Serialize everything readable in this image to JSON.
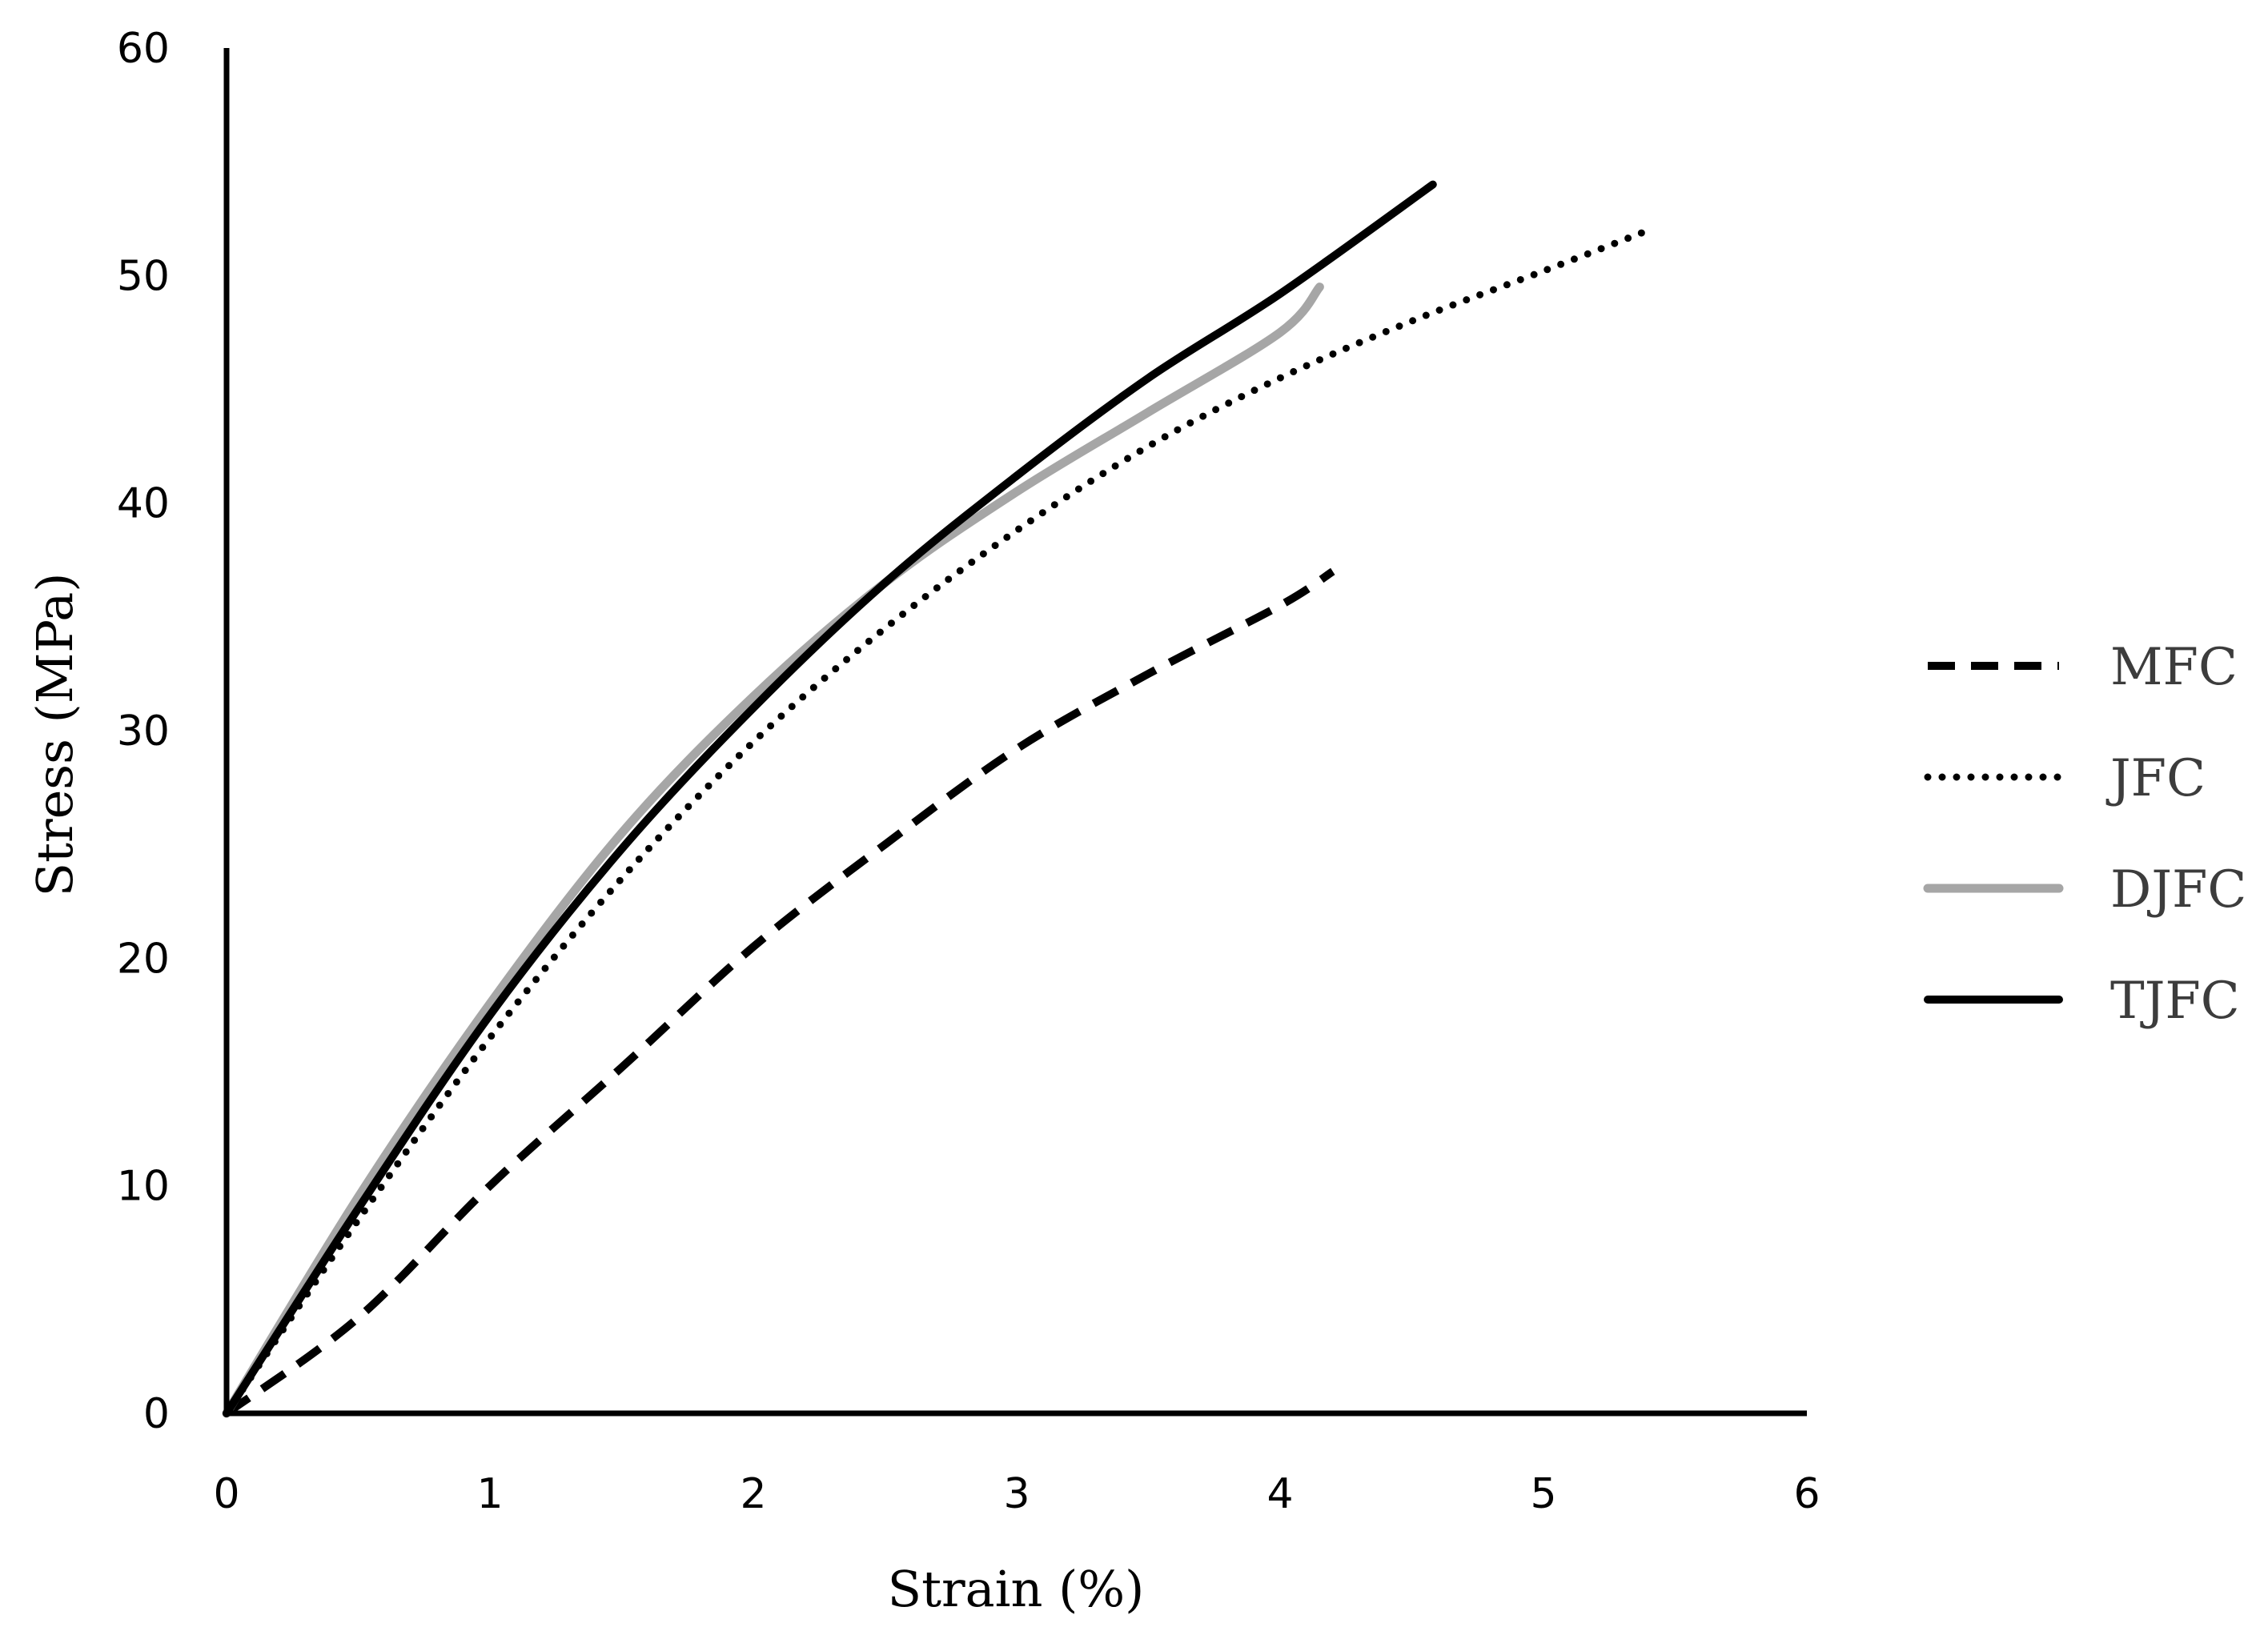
{
  "chart_data": {
    "type": "line",
    "xlabel": "Strain (%)",
    "ylabel": "Stress (MPa)",
    "xlim": [
      0,
      6
    ],
    "ylim": [
      0,
      60
    ],
    "x_ticks": [
      0,
      1,
      2,
      3,
      4,
      5,
      6
    ],
    "y_ticks": [
      0,
      10,
      20,
      30,
      40,
      50,
      60
    ],
    "grid": false,
    "legend_position": "right",
    "series": [
      {
        "name": "MFC",
        "style": "dashed",
        "color": "#000000",
        "points": [
          [
            0,
            0
          ],
          [
            0.5,
            4.2
          ],
          [
            1,
            10.0
          ],
          [
            1.5,
            15.2
          ],
          [
            2,
            20.5
          ],
          [
            2.5,
            25.0
          ],
          [
            3,
            29.2
          ],
          [
            3.5,
            32.5
          ],
          [
            4,
            35.5
          ],
          [
            4.2,
            37.0
          ]
        ]
      },
      {
        "name": "JFC",
        "style": "dotted",
        "color": "#000000",
        "points": [
          [
            0,
            0
          ],
          [
            0.5,
            8.5
          ],
          [
            1,
            16.5
          ],
          [
            1.5,
            23.5
          ],
          [
            2,
            29.5
          ],
          [
            2.5,
            34.5
          ],
          [
            3,
            38.8
          ],
          [
            3.5,
            42.5
          ],
          [
            4,
            45.5
          ],
          [
            4.5,
            48.0
          ],
          [
            5,
            50.2
          ],
          [
            5.4,
            52.0
          ]
        ]
      },
      {
        "name": "DJFC",
        "style": "solid",
        "color": "#a6a6a6",
        "points": [
          [
            0,
            0
          ],
          [
            0.5,
            9.5
          ],
          [
            1,
            18.0
          ],
          [
            1.5,
            25.5
          ],
          [
            2,
            31.5
          ],
          [
            2.5,
            36.5
          ],
          [
            3,
            40.5
          ],
          [
            3.5,
            44.0
          ],
          [
            4,
            47.5
          ],
          [
            4.15,
            49.5
          ]
        ]
      },
      {
        "name": "TJFC",
        "style": "solid",
        "color": "#000000",
        "points": [
          [
            0,
            0
          ],
          [
            0.5,
            9.0
          ],
          [
            1,
            17.5
          ],
          [
            1.5,
            24.8
          ],
          [
            2,
            31.0
          ],
          [
            2.5,
            36.5
          ],
          [
            3,
            41.2
          ],
          [
            3.5,
            45.5
          ],
          [
            4,
            49.2
          ],
          [
            4.58,
            54.0
          ]
        ]
      }
    ]
  }
}
